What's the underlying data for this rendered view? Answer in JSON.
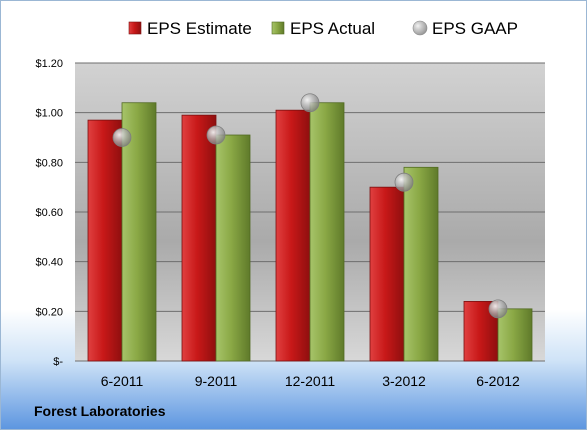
{
  "company": "Forest Laboratories",
  "chart_data": {
    "type": "bar",
    "title": "",
    "xlabel": "",
    "ylabel": "",
    "categories": [
      "6-2011",
      "9-2011",
      "12-2011",
      "3-2012",
      "6-2012"
    ],
    "series": [
      {
        "name": "EPS Estimate",
        "type": "bar",
        "color": "#cc1e1e",
        "values": [
          0.97,
          0.99,
          1.01,
          0.7,
          0.24
        ]
      },
      {
        "name": "EPS Actual",
        "type": "bar",
        "color": "#8fae47",
        "values": [
          1.04,
          0.91,
          1.04,
          0.78,
          0.21
        ]
      },
      {
        "name": "EPS GAAP",
        "type": "scatter",
        "color": "#a6a6a6",
        "values": [
          0.9,
          0.91,
          1.04,
          0.72,
          0.21
        ]
      }
    ],
    "ylim": [
      0,
      1.2
    ],
    "yticks": [
      0,
      0.2,
      0.4,
      0.6,
      0.8,
      1.0,
      1.2
    ],
    "ytick_labels": [
      "$-",
      "$0.20",
      "$0.40",
      "$0.60",
      "$0.80",
      "$1.00",
      "$1.20"
    ],
    "grid": true,
    "legend": "top"
  }
}
